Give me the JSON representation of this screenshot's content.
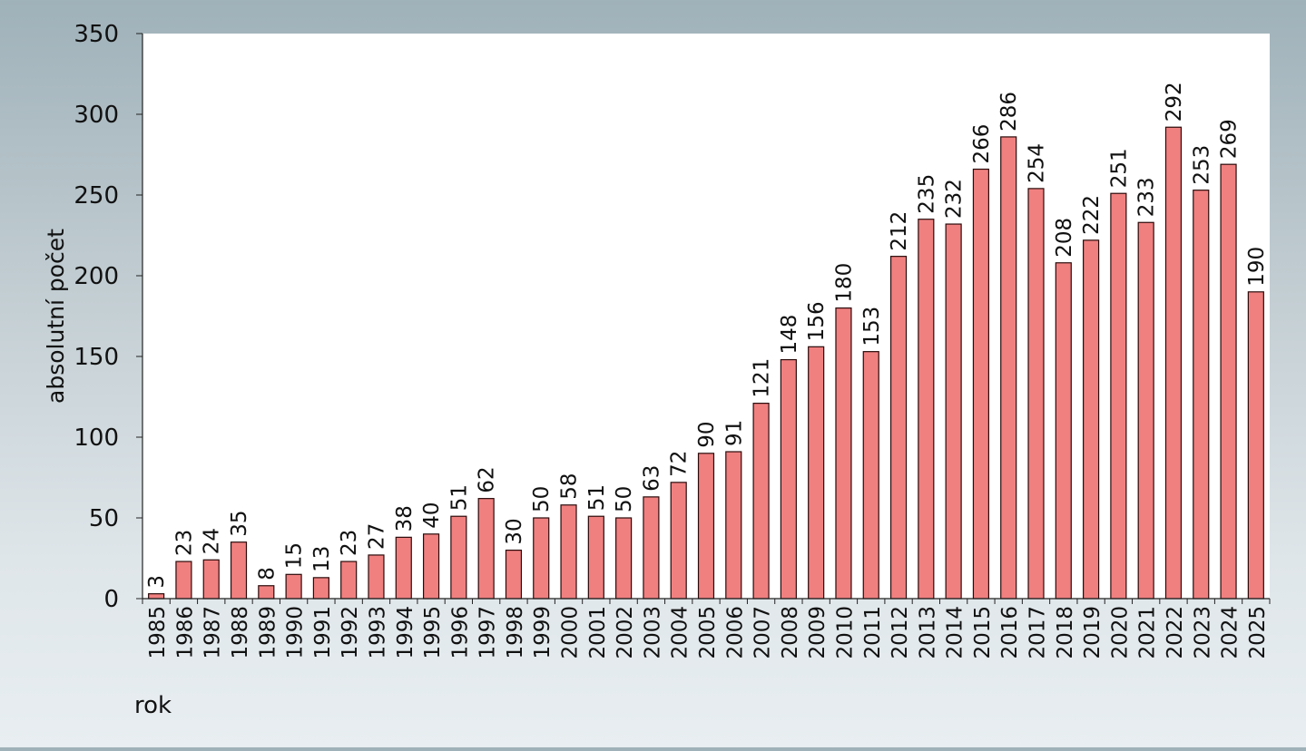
{
  "chart_data": {
    "type": "bar",
    "xlabel": "rok",
    "ylabel": "absolutní počet",
    "ylim": [
      0,
      350
    ],
    "yticks": [
      0,
      50,
      100,
      150,
      200,
      250,
      300,
      350
    ],
    "grid": false,
    "legend": "none",
    "bar_color": "#f08080",
    "bar_edge_color": "#2a0a0a",
    "plot_background": "#ffffff",
    "categories": [
      "1985",
      "1986",
      "1987",
      "1988",
      "1989",
      "1990",
      "1991",
      "1992",
      "1993",
      "1994",
      "1995",
      "1996",
      "1997",
      "1998",
      "1999",
      "2000",
      "2001",
      "2002",
      "2003",
      "2004",
      "2005",
      "2006",
      "2007",
      "2008",
      "2009",
      "2010",
      "2011",
      "2012",
      "2013",
      "2014",
      "2015",
      "2016",
      "2017",
      "2018",
      "2019",
      "2020",
      "2021",
      "2022",
      "2023",
      "2024",
      "2025"
    ],
    "values": [
      3,
      23,
      24,
      35,
      8,
      15,
      13,
      23,
      27,
      38,
      40,
      51,
      62,
      30,
      50,
      58,
      51,
      50,
      63,
      72,
      90,
      91,
      121,
      148,
      156,
      180,
      153,
      212,
      235,
      232,
      266,
      286,
      254,
      208,
      222,
      251,
      233,
      292,
      253,
      269,
      190
    ]
  }
}
